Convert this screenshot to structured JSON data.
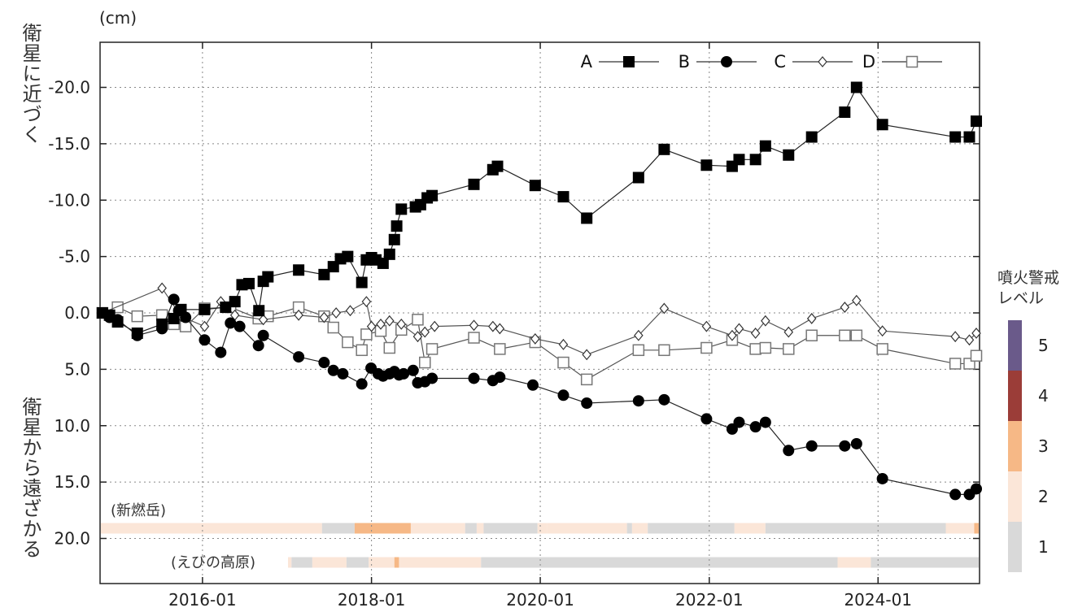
{
  "chart_data": {
    "type": "line",
    "unit_label": "(cm)",
    "ylabel_top": "衛星に近づく",
    "ylabel_bottom": "衛星から遠ざかる",
    "ylim": [
      -24,
      24
    ],
    "y_inverted": true,
    "y_ticks": [
      "-20.0",
      "-15.0",
      "-10.0",
      "-5.0",
      "0.0",
      "5.0",
      "10.0",
      "15.0",
      "20.0"
    ],
    "y_tick_values": [
      -20,
      -15,
      -10,
      -5,
      0,
      5,
      10,
      15,
      20
    ],
    "xlim": [
      "2014-10-15",
      "2025-03-15"
    ],
    "x_ticks": [
      "2016-01",
      "2018-01",
      "2020-01",
      "2022-01",
      "2024-01"
    ],
    "x_tick_dates": [
      "2016-01-01",
      "2018-01-01",
      "2020-01-01",
      "2022-01-01",
      "2024-01-01"
    ],
    "grid": true,
    "legend_position": "top-right",
    "series": [
      {
        "name": "A",
        "marker": "filled-square",
        "points": [
          [
            "2014-10-25",
            0.0
          ],
          [
            "2014-11-25",
            0.2
          ],
          [
            "2014-12-30",
            0.8
          ],
          [
            "2015-03-25",
            1.8
          ],
          [
            "2015-07-10",
            1.0
          ],
          [
            "2015-08-30",
            0.5
          ],
          [
            "2015-09-30",
            -0.3
          ],
          [
            "2016-01-10",
            -0.3
          ],
          [
            "2016-04-10",
            -0.5
          ],
          [
            "2016-05-20",
            -1.0
          ],
          [
            "2016-06-20",
            -2.5
          ],
          [
            "2016-07-20",
            -2.6
          ],
          [
            "2016-09-01",
            -0.2
          ],
          [
            "2016-09-20",
            -2.8
          ],
          [
            "2016-10-10",
            -3.2
          ],
          [
            "2017-02-20",
            -3.8
          ],
          [
            "2017-06-10",
            -3.4
          ],
          [
            "2017-07-20",
            -4.1
          ],
          [
            "2017-08-20",
            -4.8
          ],
          [
            "2017-09-20",
            -5.0
          ],
          [
            "2017-11-20",
            -2.7
          ],
          [
            "2017-12-10",
            -4.7
          ],
          [
            "2018-01-01",
            -4.9
          ],
          [
            "2018-01-20",
            -4.7
          ],
          [
            "2018-02-20",
            -4.4
          ],
          [
            "2018-03-20",
            -5.2
          ],
          [
            "2018-04-10",
            -6.5
          ],
          [
            "2018-04-20",
            -7.7
          ],
          [
            "2018-05-10",
            -9.2
          ],
          [
            "2018-07-10",
            -9.4
          ],
          [
            "2018-08-01",
            -9.6
          ],
          [
            "2018-08-30",
            -10.2
          ],
          [
            "2018-09-20",
            -10.4
          ],
          [
            "2019-03-20",
            -11.4
          ],
          [
            "2019-06-10",
            -12.7
          ],
          [
            "2019-06-30",
            -13.0
          ],
          [
            "2019-12-10",
            -11.3
          ],
          [
            "2020-04-10",
            -10.3
          ],
          [
            "2020-07-20",
            -8.4
          ],
          [
            "2021-03-01",
            -12.0
          ],
          [
            "2021-06-20",
            -14.5
          ],
          [
            "2021-12-20",
            -13.1
          ],
          [
            "2022-04-10",
            -13.0
          ],
          [
            "2022-05-10",
            -13.6
          ],
          [
            "2022-07-20",
            -13.6
          ],
          [
            "2022-09-01",
            -14.8
          ],
          [
            "2022-12-10",
            -14.0
          ],
          [
            "2023-03-20",
            -15.6
          ],
          [
            "2023-08-10",
            -17.8
          ],
          [
            "2023-09-30",
            -20.0
          ],
          [
            "2024-01-20",
            -16.7
          ],
          [
            "2024-11-30",
            -15.6
          ],
          [
            "2025-01-30",
            -15.6
          ],
          [
            "2025-03-01",
            -17.0
          ]
        ]
      },
      {
        "name": "B",
        "marker": "filled-circle",
        "points": [
          [
            "2014-10-25",
            0.0
          ],
          [
            "2014-11-25",
            0.4
          ],
          [
            "2014-12-30",
            0.6
          ],
          [
            "2015-03-25",
            2.0
          ],
          [
            "2015-07-10",
            1.4
          ],
          [
            "2015-08-30",
            -1.2
          ],
          [
            "2015-09-20",
            -0.2
          ],
          [
            "2015-10-20",
            0.4
          ],
          [
            "2016-01-10",
            2.4
          ],
          [
            "2016-03-20",
            3.5
          ],
          [
            "2016-05-01",
            0.9
          ],
          [
            "2016-06-10",
            1.2
          ],
          [
            "2016-08-30",
            2.9
          ],
          [
            "2016-09-20",
            2.0
          ],
          [
            "2017-02-20",
            3.9
          ],
          [
            "2017-06-10",
            4.4
          ],
          [
            "2017-07-20",
            5.1
          ],
          [
            "2017-08-30",
            5.4
          ],
          [
            "2017-11-20",
            6.3
          ],
          [
            "2017-12-30",
            4.9
          ],
          [
            "2018-01-30",
            5.4
          ],
          [
            "2018-02-20",
            5.6
          ],
          [
            "2018-03-20",
            5.4
          ],
          [
            "2018-04-10",
            5.2
          ],
          [
            "2018-04-30",
            5.5
          ],
          [
            "2018-05-20",
            5.4
          ],
          [
            "2018-06-30",
            5.1
          ],
          [
            "2018-07-20",
            6.2
          ],
          [
            "2018-08-20",
            6.1
          ],
          [
            "2018-09-20",
            5.8
          ],
          [
            "2019-03-20",
            5.8
          ],
          [
            "2019-06-10",
            6.0
          ],
          [
            "2019-07-10",
            5.7
          ],
          [
            "2019-11-30",
            6.4
          ],
          [
            "2020-04-10",
            7.3
          ],
          [
            "2020-07-20",
            8.0
          ],
          [
            "2021-03-01",
            7.8
          ],
          [
            "2021-06-20",
            7.7
          ],
          [
            "2021-12-20",
            9.4
          ],
          [
            "2022-04-10",
            10.3
          ],
          [
            "2022-05-10",
            9.7
          ],
          [
            "2022-07-20",
            10.1
          ],
          [
            "2022-09-01",
            9.7
          ],
          [
            "2022-12-10",
            12.2
          ],
          [
            "2023-03-20",
            11.8
          ],
          [
            "2023-08-10",
            11.8
          ],
          [
            "2023-09-30",
            11.6
          ],
          [
            "2024-01-20",
            14.7
          ],
          [
            "2024-11-30",
            16.1
          ],
          [
            "2025-01-30",
            16.1
          ],
          [
            "2025-03-01",
            15.6
          ]
        ]
      },
      {
        "name": "C",
        "marker": "open-diamond",
        "points": [
          [
            "2014-10-25",
            0.0
          ],
          [
            "2015-07-10",
            -2.2
          ],
          [
            "2015-09-30",
            0.3
          ],
          [
            "2016-01-10",
            1.2
          ],
          [
            "2016-03-20",
            -1.0
          ],
          [
            "2016-05-20",
            0.2
          ],
          [
            "2016-09-20",
            0.6
          ],
          [
            "2017-02-20",
            0.2
          ],
          [
            "2017-06-10",
            0.4
          ],
          [
            "2017-08-01",
            0.0
          ],
          [
            "2017-10-01",
            -0.2
          ],
          [
            "2017-12-10",
            -1.0
          ],
          [
            "2018-01-01",
            1.2
          ],
          [
            "2018-02-10",
            1.0
          ],
          [
            "2018-03-20",
            0.7
          ],
          [
            "2018-05-10",
            1.0
          ],
          [
            "2018-07-20",
            2.1
          ],
          [
            "2018-08-20",
            1.7
          ],
          [
            "2018-10-01",
            1.2
          ],
          [
            "2019-03-20",
            1.1
          ],
          [
            "2019-06-10",
            1.2
          ],
          [
            "2019-07-10",
            1.4
          ],
          [
            "2019-12-10",
            2.3
          ],
          [
            "2020-04-10",
            2.8
          ],
          [
            "2020-07-20",
            3.7
          ],
          [
            "2021-03-01",
            2.0
          ],
          [
            "2021-06-20",
            -0.4
          ],
          [
            "2021-12-20",
            1.2
          ],
          [
            "2022-04-10",
            2.0
          ],
          [
            "2022-05-10",
            1.4
          ],
          [
            "2022-07-20",
            1.8
          ],
          [
            "2022-09-01",
            0.7
          ],
          [
            "2022-12-10",
            1.7
          ],
          [
            "2023-03-20",
            0.5
          ],
          [
            "2023-08-10",
            -0.5
          ],
          [
            "2023-09-30",
            -1.1
          ],
          [
            "2024-01-20",
            1.6
          ],
          [
            "2024-11-30",
            2.1
          ],
          [
            "2025-01-30",
            2.4
          ],
          [
            "2025-03-01",
            1.8
          ]
        ]
      },
      {
        "name": "D",
        "marker": "open-square",
        "points": [
          [
            "2014-10-25",
            0.0
          ],
          [
            "2014-12-30",
            -0.5
          ],
          [
            "2015-03-25",
            0.3
          ],
          [
            "2015-07-10",
            0.2
          ],
          [
            "2015-08-30",
            1.0
          ],
          [
            "2015-10-20",
            1.2
          ],
          [
            "2016-01-10",
            -0.4
          ],
          [
            "2016-05-01",
            -0.5
          ],
          [
            "2016-08-30",
            0.5
          ],
          [
            "2016-10-10",
            0.3
          ],
          [
            "2017-02-20",
            -0.5
          ],
          [
            "2017-06-10",
            0.3
          ],
          [
            "2017-07-20",
            1.3
          ],
          [
            "2017-09-20",
            2.6
          ],
          [
            "2017-11-20",
            3.3
          ],
          [
            "2017-12-10",
            1.9
          ],
          [
            "2018-02-10",
            1.6
          ],
          [
            "2018-03-20",
            3.1
          ],
          [
            "2018-05-10",
            1.5
          ],
          [
            "2018-07-20",
            0.6
          ],
          [
            "2018-08-20",
            4.4
          ],
          [
            "2018-09-20",
            3.2
          ],
          [
            "2019-03-20",
            2.2
          ],
          [
            "2019-07-10",
            3.2
          ],
          [
            "2019-12-10",
            2.6
          ],
          [
            "2020-04-10",
            4.4
          ],
          [
            "2020-07-20",
            5.9
          ],
          [
            "2021-03-01",
            3.3
          ],
          [
            "2021-06-20",
            3.3
          ],
          [
            "2021-12-20",
            3.1
          ],
          [
            "2022-04-10",
            2.4
          ],
          [
            "2022-07-20",
            3.2
          ],
          [
            "2022-09-01",
            3.1
          ],
          [
            "2022-12-10",
            3.2
          ],
          [
            "2023-03-20",
            2.0
          ],
          [
            "2023-08-10",
            2.0
          ],
          [
            "2023-09-30",
            2.0
          ],
          [
            "2024-01-20",
            3.2
          ],
          [
            "2024-11-30",
            4.5
          ],
          [
            "2025-01-30",
            4.5
          ],
          [
            "2025-03-01",
            3.8
          ]
        ]
      }
    ],
    "alert_bars": [
      {
        "label": "(新燃岳)",
        "segments": [
          [
            "2014-10-15",
            "2017-06-01",
            2
          ],
          [
            "2017-06-01",
            "2017-10-20",
            1
          ],
          [
            "2017-10-20",
            "2018-06-20",
            3
          ],
          [
            "2018-06-20",
            "2019-02-10",
            2
          ],
          [
            "2019-02-10",
            "2019-04-01",
            1
          ],
          [
            "2019-04-01",
            "2019-05-01",
            2
          ],
          [
            "2019-05-01",
            "2019-12-20",
            1
          ],
          [
            "2019-12-20",
            "2020-02-01",
            2
          ],
          [
            "2020-02-01",
            "2021-01-10",
            2
          ],
          [
            "2021-01-10",
            "2021-02-01",
            1
          ],
          [
            "2021-02-01",
            "2021-04-10",
            2
          ],
          [
            "2021-04-10",
            "2022-04-20",
            1
          ],
          [
            "2022-04-20",
            "2022-09-01",
            2
          ],
          [
            "2022-09-01",
            "2024-10-20",
            1
          ],
          [
            "2024-10-20",
            "2025-02-20",
            2
          ],
          [
            "2025-02-20",
            "2025-03-15",
            3
          ]
        ]
      },
      {
        "label": "(えびの高原)",
        "segments": [
          [
            "2016-11-20",
            "2017-01-20",
            2
          ],
          [
            "2017-01-20",
            "2017-04-20",
            1
          ],
          [
            "2017-04-20",
            "2017-09-15",
            2
          ],
          [
            "2017-09-15",
            "2017-12-20",
            1
          ],
          [
            "2017-12-20",
            "2018-04-10",
            2
          ],
          [
            "2018-04-10",
            "2018-04-30",
            3
          ],
          [
            "2018-04-30",
            "2019-04-20",
            2
          ],
          [
            "2019-04-20",
            "2023-07-10",
            1
          ],
          [
            "2023-07-10",
            "2023-12-01",
            2
          ],
          [
            "2023-12-01",
            "2025-03-15",
            1
          ]
        ]
      }
    ],
    "alert_levels": {
      "title_line1": "噴火警戒",
      "title_line2": "レベル",
      "levels": [
        {
          "level": "5",
          "color": "#6a5a8a"
        },
        {
          "level": "4",
          "color": "#9b3d38"
        },
        {
          "level": "3",
          "color": "#f6b886"
        },
        {
          "level": "2",
          "color": "#fbe6d8"
        },
        {
          "level": "1",
          "color": "#d9d9d9"
        }
      ]
    }
  }
}
